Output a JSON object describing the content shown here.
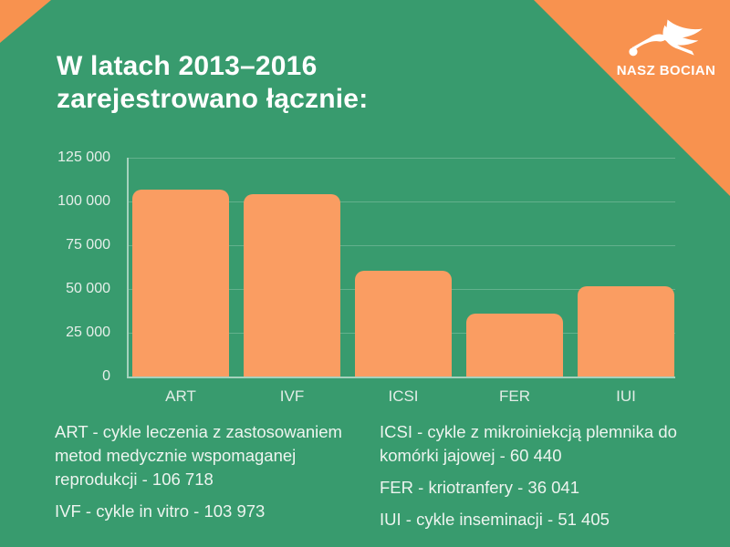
{
  "page": {
    "background_color": "#389B6E",
    "accent_color": "#F8924F",
    "bar_color": "#FA9D62"
  },
  "header": {
    "title_line1": "W latach 2013–2016",
    "title_line2": "zarejestrowano łącznie:"
  },
  "logo": {
    "text": "NASZ BOCIAN",
    "icon": "stork-with-bundle-icon"
  },
  "chart_data": {
    "type": "bar",
    "title": "W latach 2013–2016 zarejestrowano łącznie:",
    "categories": [
      "ART",
      "IVF",
      "ICSI",
      "FER",
      "IUI"
    ],
    "values": [
      106718,
      103973,
      60440,
      36041,
      51405
    ],
    "xlabel": "",
    "ylabel": "",
    "ylim": [
      0,
      125000
    ],
    "yticks": [
      125000,
      100000,
      75000,
      50000,
      25000,
      0
    ],
    "ytick_labels": [
      "125 000",
      "100 000",
      "75 000",
      "50 000",
      "25 000",
      "0"
    ],
    "grid": true,
    "legend_position": "none",
    "bar_color": "#FA9D62"
  },
  "legend": {
    "left": [
      {
        "text": "ART - cykle leczenia z zastosowaniem metod medycznie wspomaganej reprodukcji - 106 718"
      },
      {
        "text": "IVF - cykle in vitro - 103 973"
      }
    ],
    "right": [
      {
        "text": "ICSI - cykle z mikroiniekcją plemnika do komórki jajowej - 60 440"
      },
      {
        "text": "FER - kriotranfery - 36 041"
      },
      {
        "text": "IUI - cykle inseminacji - 51 405"
      }
    ]
  }
}
